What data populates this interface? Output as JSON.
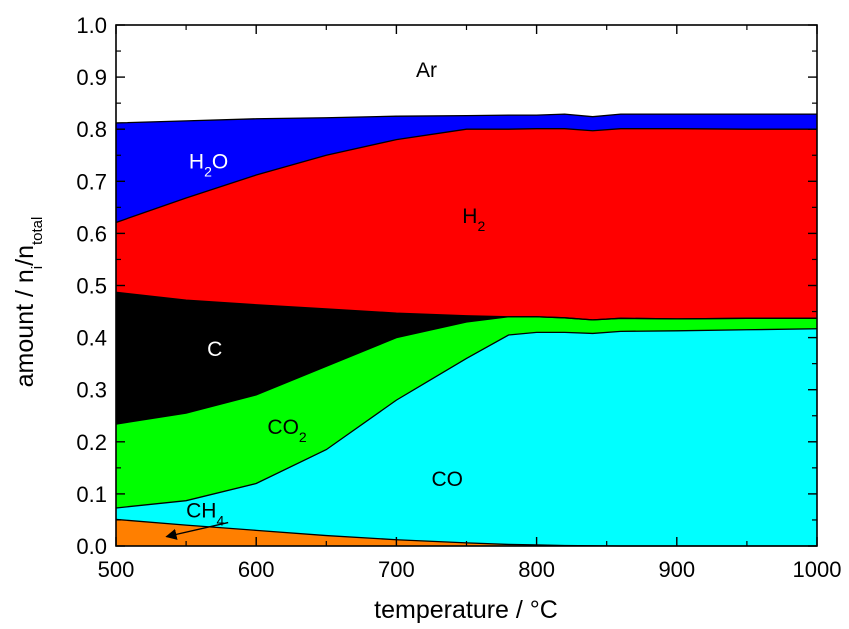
{
  "chart_data": {
    "type": "area",
    "stacked": true,
    "xlabel": "temperature / °C",
    "ylabel": {
      "main": "amount / n",
      "sub1": "i",
      "mid": "/n",
      "sub2": "total"
    },
    "xlim": [
      500,
      1000
    ],
    "ylim": [
      0.0,
      1.0
    ],
    "xticks": [
      "500",
      "600",
      "700",
      "800",
      "900",
      "1000"
    ],
    "yticks": [
      "0.0",
      "0.1",
      "0.2",
      "0.3",
      "0.4",
      "0.5",
      "0.6",
      "0.7",
      "0.8",
      "0.9",
      "1.0"
    ],
    "grid": false,
    "x": [
      500,
      550,
      600,
      650,
      700,
      750,
      780,
      800,
      820,
      840,
      860,
      900,
      950,
      1000
    ],
    "boundaries": {
      "ch4_top": [
        0.051,
        0.04,
        0.03,
        0.02,
        0.012,
        0.006,
        0.003,
        0.002,
        0.001,
        0.0005,
        0.0,
        0.0,
        0.0,
        0.0
      ],
      "co_top": [
        0.073,
        0.087,
        0.12,
        0.185,
        0.28,
        0.36,
        0.405,
        0.41,
        0.41,
        0.408,
        0.412,
        0.413,
        0.415,
        0.417
      ],
      "co2_top": [
        0.234,
        0.255,
        0.29,
        0.345,
        0.4,
        0.43,
        0.44,
        0.44,
        0.438,
        0.434,
        0.437,
        0.436,
        0.437,
        0.437
      ],
      "c_top": [
        0.487,
        0.472,
        0.463,
        0.455,
        0.447,
        0.442,
        0.44,
        0.44,
        0.438,
        0.434,
        0.437,
        0.436,
        0.437,
        0.437
      ],
      "h2_top": [
        0.621,
        0.668,
        0.712,
        0.75,
        0.78,
        0.8,
        0.8,
        0.801,
        0.801,
        0.797,
        0.801,
        0.801,
        0.8,
        0.8
      ],
      "h2o_top": [
        0.812,
        0.816,
        0.82,
        0.822,
        0.825,
        0.826,
        0.827,
        0.827,
        0.829,
        0.824,
        0.829,
        0.829,
        0.829,
        0.829
      ],
      "ar_top": [
        1.0,
        1.0,
        1.0,
        1.0,
        1.0,
        1.0,
        1.0,
        1.0,
        1.0,
        1.0,
        1.0,
        1.0,
        1.0,
        1.0
      ]
    },
    "series": [
      {
        "name": "CH",
        "sub": "4",
        "color": "#ff7f00",
        "lower": null,
        "upper": "ch4_top",
        "label_at": [
          550,
          0.055
        ],
        "label_color": "#000000"
      },
      {
        "name": "CO",
        "sub": "",
        "color": "#00ffff",
        "lower": "ch4_top",
        "upper": "co_top",
        "label_at": [
          725,
          0.115
        ],
        "label_color": "#000000"
      },
      {
        "name": "CO",
        "sub": "2",
        "color": "#00ff00",
        "lower": "co_top",
        "upper": "co2_top",
        "label_at": [
          608,
          0.215
        ],
        "label_color": "#000000"
      },
      {
        "name": "C",
        "sub": "",
        "color": "#000000",
        "lower": "co2_top",
        "upper": "c_top",
        "label_at": [
          565,
          0.365
        ],
        "label_color": "#ffffff"
      },
      {
        "name": "H",
        "sub": "2",
        "color": "#ff0000",
        "lower": "c_top",
        "upper": "h2_top",
        "label_at": [
          747,
          0.62
        ],
        "label_color": "#000000"
      },
      {
        "name": "H",
        "sub": "2",
        "post": "O",
        "color": "#0000ff",
        "lower": "h2_top",
        "upper": "h2o_top",
        "label_at": [
          552,
          0.725
        ],
        "label_color": "#ffffff"
      },
      {
        "name": "Ar",
        "sub": "",
        "color": "#ffffff",
        "lower": "h2o_top",
        "upper": "ar_top",
        "label_at": [
          714,
          0.9
        ],
        "label_color": "#000000"
      }
    ],
    "annotation": {
      "type": "arrow",
      "from": [
        580,
        0.045
      ],
      "to": [
        536,
        0.018
      ],
      "refers_to": "CH4"
    }
  }
}
